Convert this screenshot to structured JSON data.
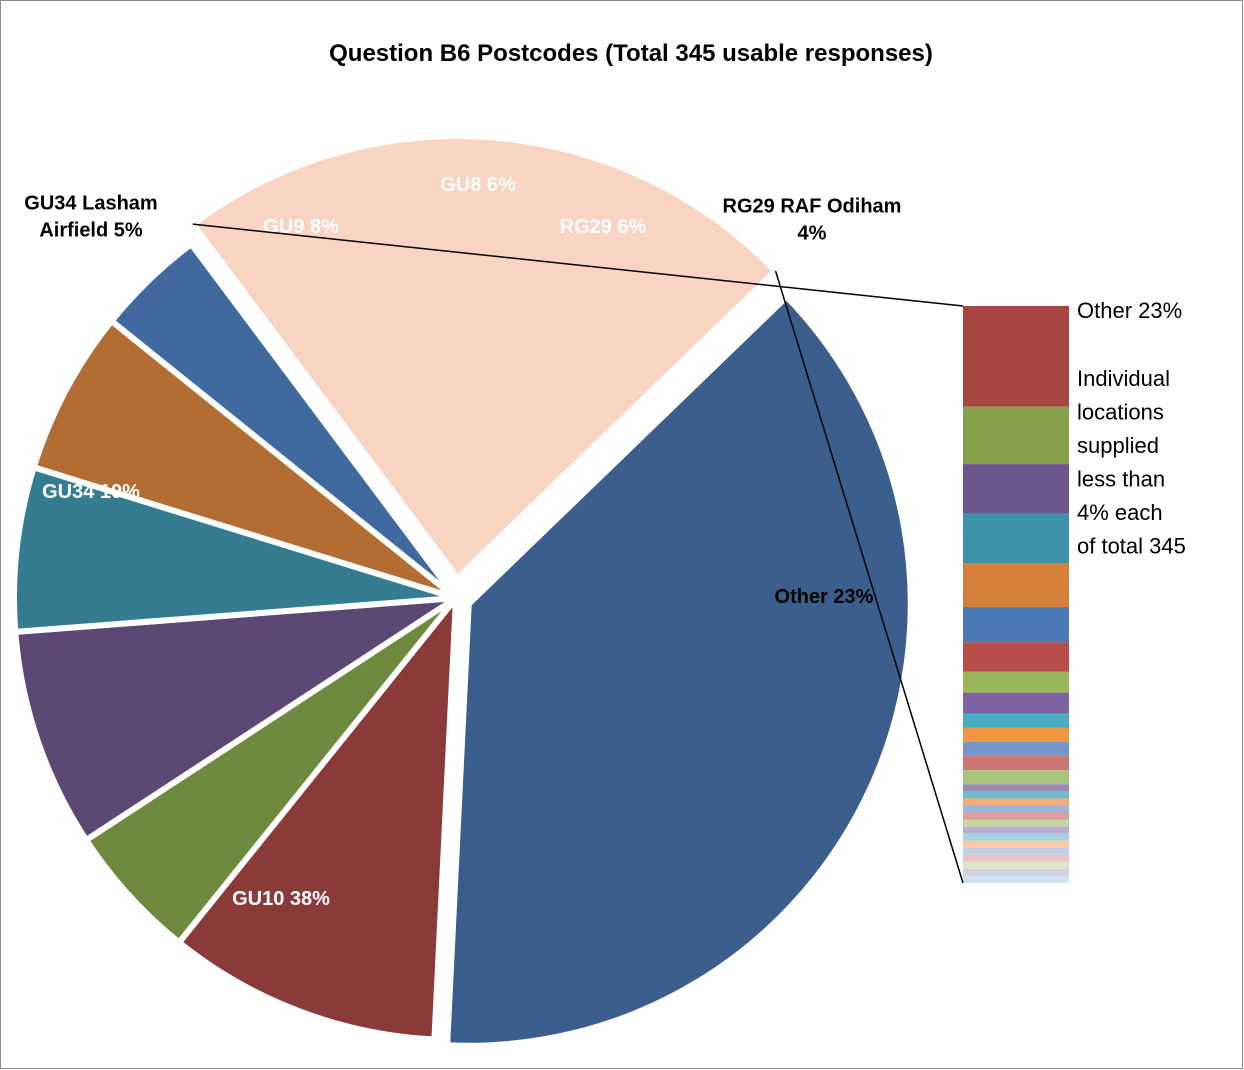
{
  "chart_data": {
    "type": "pie",
    "title": "Question B6 Postcodes (Total 345 usable responses)",
    "slices": [
      {
        "name": "GU10",
        "value": 38,
        "label_lines": [
          "GU10 38%"
        ],
        "color": "#3b5e8c",
        "label_color": "#ffffff"
      },
      {
        "name": "GU34",
        "value": 10,
        "label_lines": [
          "GU34 10%"
        ],
        "color": "#8b3a3a",
        "label_color": "#ffffff"
      },
      {
        "name": "GU34 Lasham Airfield",
        "value": 5,
        "label_lines": [
          "GU34 Lasham",
          "Airfield 5%"
        ],
        "color": "#6e8a3f",
        "label_color": "#000000"
      },
      {
        "name": "GU9",
        "value": 8,
        "label_lines": [
          "GU9 8%"
        ],
        "color": "#5c4875",
        "label_color": "#ffffff"
      },
      {
        "name": "GU8",
        "value": 6,
        "label_lines": [
          "GU8 6%"
        ],
        "color": "#357c91",
        "label_color": "#ffffff"
      },
      {
        "name": "RG29",
        "value": 6,
        "label_lines": [
          "RG29 6%"
        ],
        "color": "#b36c32",
        "label_color": "#ffffff"
      },
      {
        "name": "RG29 RAF Odiham",
        "value": 4,
        "label_lines": [
          "RG29 RAF Odiham",
          "4%"
        ],
        "color": "#4069a0",
        "label_color": "#000000"
      },
      {
        "name": "Other",
        "value": 23,
        "label_lines": [
          "Other 23%"
        ],
        "color": "#f9d4c2",
        "label_color": "#000000"
      }
    ],
    "breakout": {
      "label": "Other 23%",
      "note_lines": [
        "Individual",
        "locations",
        "supplied",
        "less than",
        "4% each",
        "of total 345"
      ],
      "segments": [
        {
          "weight": 100,
          "color": "#a84541"
        },
        {
          "weight": 57,
          "color": "#87a14c"
        },
        {
          "weight": 49,
          "color": "#6d558d"
        },
        {
          "weight": 50,
          "color": "#3f93ab"
        },
        {
          "weight": 43,
          "color": "#d6803b"
        },
        {
          "weight": 35,
          "color": "#4a79b5"
        },
        {
          "weight": 29,
          "color": "#b84d4a"
        },
        {
          "weight": 21,
          "color": "#98b65a"
        },
        {
          "weight": 21,
          "color": "#7f63a1"
        },
        {
          "weight": 14,
          "color": "#47adc4"
        },
        {
          "weight": 14,
          "color": "#f09540"
        },
        {
          "weight": 14,
          "color": "#7596c9"
        },
        {
          "weight": 14,
          "color": "#cb7675"
        },
        {
          "weight": 14,
          "color": "#aac37c"
        },
        {
          "weight": 7,
          "color": "#9a88b5"
        },
        {
          "weight": 7,
          "color": "#6fbccf"
        },
        {
          "weight": 7,
          "color": "#f5ad73"
        },
        {
          "weight": 7,
          "color": "#9eb4da"
        },
        {
          "weight": 7,
          "color": "#dc9e9c"
        },
        {
          "weight": 7,
          "color": "#c4d6a2"
        },
        {
          "weight": 7,
          "color": "#b9aecf"
        },
        {
          "weight": 7,
          "color": "#a4d3e0"
        },
        {
          "weight": 7,
          "color": "#f8c9a4"
        },
        {
          "weight": 7,
          "color": "#c3cfe6"
        },
        {
          "weight": 7,
          "color": "#e9c6c5"
        },
        {
          "weight": 7,
          "color": "#dbe6c8"
        },
        {
          "weight": 7,
          "color": "#d8d1e4"
        },
        {
          "weight": 7,
          "color": "#cbe6ee"
        }
      ]
    }
  }
}
